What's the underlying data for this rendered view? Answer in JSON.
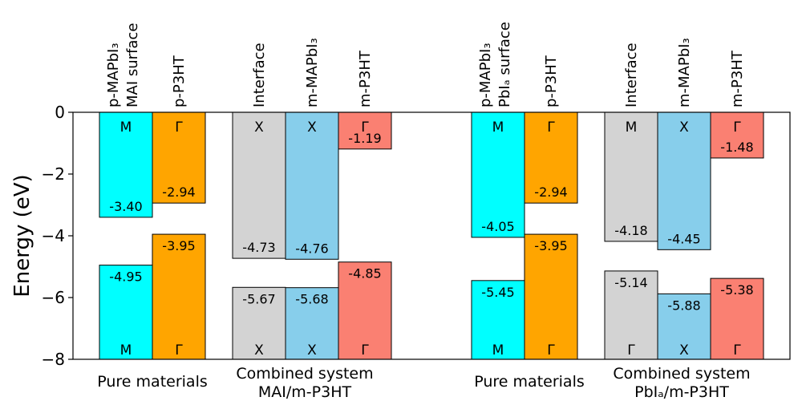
{
  "chart_data": {
    "type": "bar",
    "ylabel": "Energy (eV)",
    "ylim": [
      -8,
      0
    ],
    "yticks": [
      0,
      -2,
      -4,
      -6,
      -8
    ],
    "ytick_labels": [
      "0",
      "−2",
      "−4",
      "−6",
      "−8"
    ],
    "colors": {
      "p-MAPbI3": "#00ffff",
      "p-P3HT": "#ffa500",
      "Interface": "#d3d3d3",
      "m-MAPbI3": "#87ceeb",
      "m-P3HT": "#fa8072"
    },
    "groups": [
      {
        "line1": "Pure materials",
        "line2": ""
      },
      {
        "line1": "Combined system",
        "line2": "MAI/m-P3HT"
      },
      {
        "line1": "Pure materials",
        "line2": ""
      },
      {
        "line1": "Combined system",
        "line2": "PbIₐ/m-P3HT"
      }
    ],
    "bars": [
      {
        "group": 0,
        "label1": "p-MAPbI₃",
        "label2": "MAI surface",
        "color": "#00ffff",
        "cbm": -3.4,
        "vbm": -4.95,
        "cbm_text": "-3.40",
        "vbm_text": "-4.95",
        "top_sym": "M",
        "bottom_sym": "M"
      },
      {
        "group": 0,
        "label1": "p-P3HT",
        "label2": "",
        "color": "#ffa500",
        "cbm": -2.94,
        "vbm": -3.95,
        "cbm_text": "-2.94",
        "vbm_text": "-3.95",
        "top_sym": "Γ",
        "bottom_sym": "Γ"
      },
      {
        "group": 1,
        "label1": "Interface",
        "label2": "",
        "color": "#d3d3d3",
        "cbm": -4.73,
        "vbm": -5.67,
        "cbm_text": "-4.73",
        "vbm_text": "-5.67",
        "top_sym": "X",
        "bottom_sym": "X"
      },
      {
        "group": 1,
        "label1": "m-MAPbI₃",
        "label2": "",
        "color": "#87ceeb",
        "cbm": -4.76,
        "vbm": -5.68,
        "cbm_text": "-4.76",
        "vbm_text": "-5.68",
        "top_sym": "X",
        "bottom_sym": "X"
      },
      {
        "group": 1,
        "label1": "m-P3HT",
        "label2": "",
        "color": "#fa8072",
        "cbm": -1.19,
        "vbm": -4.85,
        "cbm_text": "-1.19",
        "vbm_text": "-4.85",
        "top_sym": "Γ",
        "bottom_sym": "Γ"
      },
      {
        "group": 2,
        "label1": "p-MAPbI₃",
        "label2": "PbIₐ surface",
        "color": "#00ffff",
        "cbm": -4.05,
        "vbm": -5.45,
        "cbm_text": "-4.05",
        "vbm_text": "-5.45",
        "top_sym": "M",
        "bottom_sym": "M"
      },
      {
        "group": 2,
        "label1": "p-P3HT",
        "label2": "",
        "color": "#ffa500",
        "cbm": -2.94,
        "vbm": -3.95,
        "cbm_text": "-2.94",
        "vbm_text": "-3.95",
        "top_sym": "Γ",
        "bottom_sym": "Γ"
      },
      {
        "group": 3,
        "label1": "Interface",
        "label2": "",
        "color": "#d3d3d3",
        "cbm": -4.18,
        "vbm": -5.14,
        "cbm_text": "-4.18",
        "vbm_text": "-5.14",
        "top_sym": "M",
        "bottom_sym": "Γ"
      },
      {
        "group": 3,
        "label1": "m-MAPbI₃",
        "label2": "",
        "color": "#87ceeb",
        "cbm": -4.45,
        "vbm": -5.88,
        "cbm_text": "-4.45",
        "vbm_text": "-5.88",
        "top_sym": "X",
        "bottom_sym": "X"
      },
      {
        "group": 3,
        "label1": "m-P3HT",
        "label2": "",
        "color": "#fa8072",
        "cbm": -1.48,
        "vbm": -5.38,
        "cbm_text": "-1.48",
        "vbm_text": "-5.38",
        "top_sym": "Γ",
        "bottom_sym": "Γ"
      }
    ]
  }
}
